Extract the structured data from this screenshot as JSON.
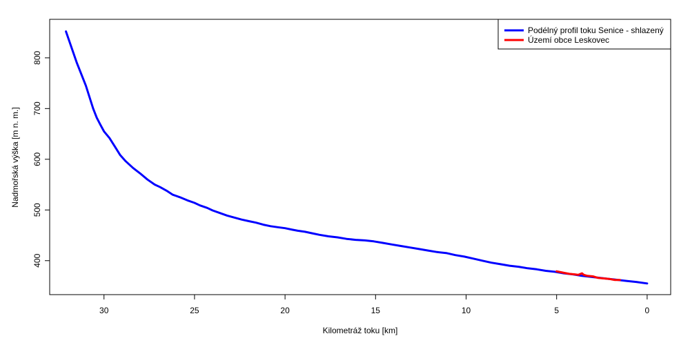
{
  "chart_data": {
    "type": "line",
    "xlabel": "Kilometráž toku [km]",
    "ylabel": "Nadmořská výška [m n. m.]",
    "xlim": [
      33.0,
      -1.3
    ],
    "ylim": [
      333,
      876
    ],
    "x_ticks": [
      30,
      25,
      20,
      15,
      10,
      5,
      0
    ],
    "y_ticks": [
      400,
      500,
      600,
      700,
      800
    ],
    "x_direction": "reversed",
    "grid": false,
    "legend_position": "top-right",
    "series": [
      {
        "name": "Podélný profil toku Senice - shlazený",
        "color": "#0000ff",
        "x": [
          32.1,
          31.5,
          31.0,
          30.6,
          30.4,
          30.2,
          30.0,
          29.7,
          29.4,
          29.1,
          28.8,
          28.4,
          28.0,
          27.6,
          27.2,
          26.9,
          26.5,
          26.2,
          25.8,
          25.4,
          25.0,
          24.7,
          24.3,
          24.0,
          23.6,
          23.2,
          22.8,
          22.4,
          22.0,
          21.6,
          21.2,
          20.8,
          20.4,
          20.0,
          19.6,
          19.3,
          18.9,
          18.5,
          18.1,
          17.6,
          17.1,
          16.6,
          16.1,
          15.6,
          15.1,
          14.6,
          14.1,
          13.6,
          13.1,
          12.6,
          12.1,
          11.6,
          11.1,
          10.6,
          10.1,
          9.6,
          9.1,
          8.6,
          8.1,
          7.6,
          7.1,
          6.6,
          6.1,
          5.6,
          5.1,
          4.6,
          4.1,
          3.6,
          3.1,
          2.6,
          2.1,
          1.6,
          1.1,
          0.6,
          0.0
        ],
        "values": [
          852,
          790,
          745,
          700,
          682,
          668,
          655,
          642,
          625,
          608,
          596,
          583,
          572,
          560,
          550,
          545,
          537,
          530,
          525,
          519,
          514,
          509,
          504,
          499,
          494,
          489,
          485,
          481,
          478,
          475,
          471,
          468,
          466,
          464,
          461,
          459,
          457,
          454,
          451,
          448,
          446,
          443,
          441,
          440,
          438,
          435,
          432,
          429,
          426,
          423,
          420,
          417,
          415,
          411,
          408,
          404,
          400,
          396,
          393,
          390,
          388,
          385,
          383,
          380,
          378,
          375,
          373,
          370,
          368,
          366,
          364,
          362,
          360,
          358,
          355
        ]
      },
      {
        "name": "Území obce Leskovec",
        "color": "#ff0000",
        "x": [
          5.0,
          4.6,
          4.3,
          4.0,
          3.8,
          3.6,
          3.5,
          3.3,
          3.0,
          2.7,
          2.4,
          2.1,
          1.8,
          1.5
        ],
        "values": [
          379,
          376,
          374,
          373,
          372,
          375,
          372,
          370,
          369,
          366,
          365,
          364,
          362,
          362
        ]
      }
    ]
  }
}
